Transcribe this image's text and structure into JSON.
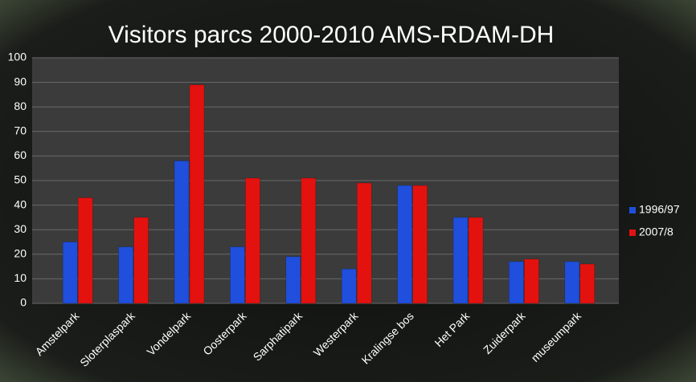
{
  "chart_data": {
    "type": "bar",
    "title": "Visitors parcs 2000-2010 AMS-RDAM-DH",
    "categories": [
      "Amstelpark",
      "Sloterplaspark",
      "Vondelpark",
      "Oosterpark",
      "Sarphatipark",
      "Westerpark",
      "Kralingse bos",
      "Het Park",
      "Zuiderpark",
      "museumpark"
    ],
    "series": [
      {
        "name": "1996/97",
        "color": "#1f4fdc",
        "values": [
          25,
          23,
          58,
          23,
          19,
          14,
          48,
          35,
          17,
          17
        ]
      },
      {
        "name": "2007/8",
        "color": "#e3120f",
        "values": [
          43,
          35,
          89,
          51,
          51,
          49,
          48,
          35,
          18,
          16
        ]
      }
    ],
    "ylim": [
      0,
      100
    ],
    "yticks": [
      0,
      10,
      20,
      30,
      40,
      50,
      60,
      70,
      80,
      90,
      100
    ],
    "grid": true,
    "legend": "right"
  }
}
